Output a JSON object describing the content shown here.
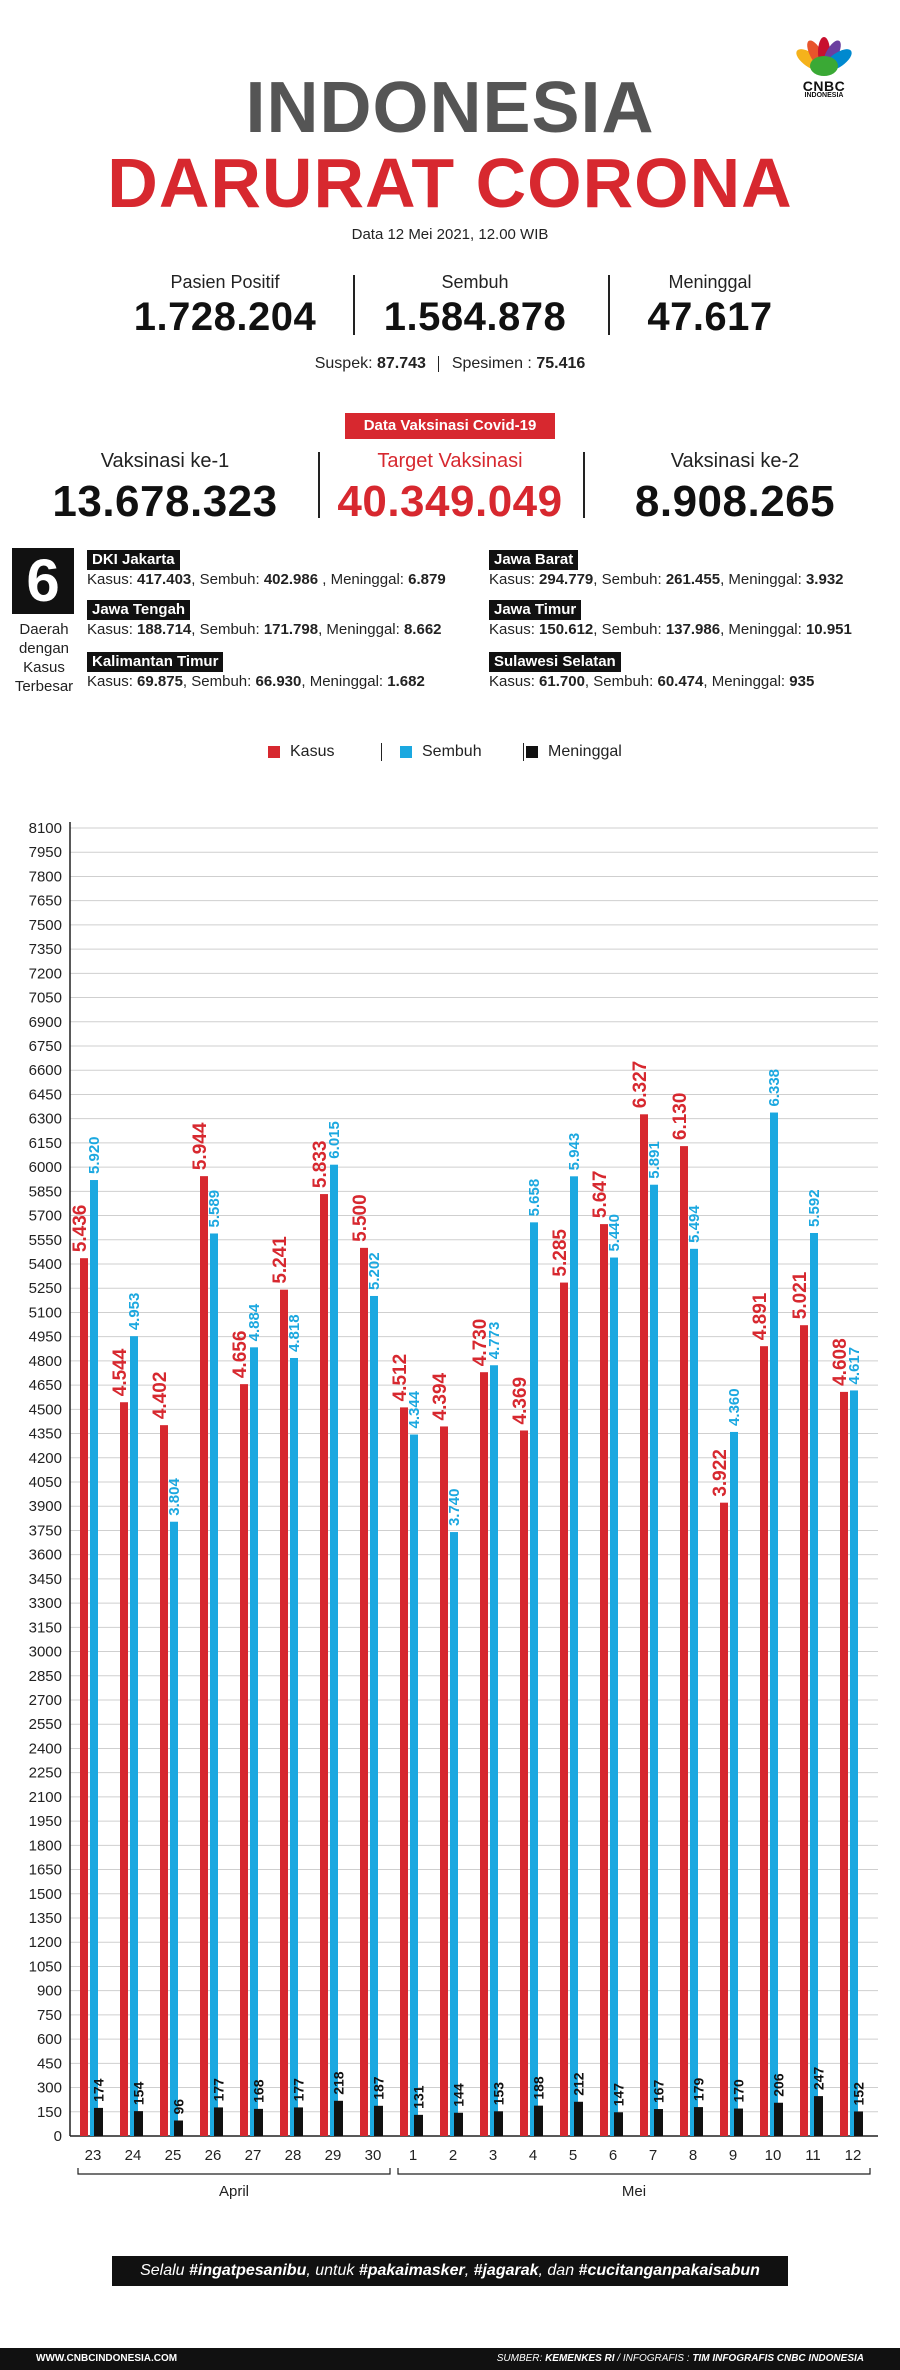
{
  "logo": {
    "text": "CNBC",
    "sub": "INDONESIA"
  },
  "title": {
    "line1": "INDONESIA",
    "line2": "DARURAT CORONA"
  },
  "date": "Data 12 Mei 2021, 12.00 WIB",
  "stats": [
    {
      "label": "Pasien Positif",
      "value": "1.728.204"
    },
    {
      "label": "Sembuh",
      "value": "1.584.878"
    },
    {
      "label": "Meninggal",
      "value": "47.617"
    }
  ],
  "suspek": {
    "label": "Suspek:",
    "value": "87.743"
  },
  "spesimen": {
    "label": "Spesimen :",
    "value": "75.416"
  },
  "vaksin_badge": "Data Vaksinasi Covid-19",
  "vaksin": [
    {
      "label": "Vaksinasi ke-1",
      "value": "13.678.323"
    },
    {
      "label": "Target Vaksinasi",
      "value": "40.349.049"
    },
    {
      "label": "Vaksinasi ke-2",
      "value": "8.908.265"
    }
  ],
  "regions_count": "6",
  "regions_caption": [
    "Daerah",
    "dengan",
    "Kasus",
    "Terbesar"
  ],
  "regions": [
    {
      "name": "DKI Jakarta",
      "kasus": "417.403",
      "sembuh": "402.986",
      "sep": " , ",
      "meninggal": "6.879"
    },
    {
      "name": "Jawa Barat",
      "kasus": "294.779",
      "sembuh": "261.455",
      "sep": ", ",
      "meninggal": "3.932"
    },
    {
      "name": "Jawa Tengah",
      "kasus": "188.714",
      "sembuh": "171.798",
      "sep": ", ",
      "meninggal": "8.662"
    },
    {
      "name": "Jawa Timur",
      "kasus": "150.612",
      "sembuh": "137.986",
      "sep": ", ",
      "meninggal": "10.951"
    },
    {
      "name": "Kalimantan Timur",
      "kasus": "69.875",
      "sembuh": "66.930",
      "sep": ", ",
      "meninggal": "1.682"
    },
    {
      "name": "Sulawesi Selatan",
      "kasus": "61.700",
      "sembuh": "60.474",
      "sep": ", ",
      "meninggal": "935"
    }
  ],
  "region_labels": {
    "kasus": "Kasus: ",
    "sembuh": "Sembuh: ",
    "meninggal": "Meninggal: "
  },
  "colors": {
    "kasus": "#d7282f",
    "sembuh": "#1ba8e0",
    "meninggal": "#111111"
  },
  "chart_data": {
    "type": "bar",
    "categories": [
      "23",
      "24",
      "25",
      "26",
      "27",
      "28",
      "29",
      "30",
      "1",
      "2",
      "3",
      "4",
      "5",
      "6",
      "7",
      "8",
      "9",
      "10",
      "11",
      "12"
    ],
    "groups": [
      {
        "label": "April",
        "from": 0,
        "to": 7
      },
      {
        "label": "Mei",
        "from": 8,
        "to": 19
      }
    ],
    "series": [
      {
        "name": "Kasus",
        "values": [
          5436,
          4544,
          4402,
          5944,
          4656,
          5241,
          5833,
          5500,
          4512,
          4394,
          4730,
          4369,
          5285,
          5647,
          6327,
          6130,
          3922,
          4891,
          5021,
          4608
        ],
        "labels": [
          "5.436",
          "4.544",
          "4.402",
          "5.944",
          "4.656",
          "5.241",
          "5.833",
          "5.500",
          "4.512",
          "4.394",
          "4.730",
          "4.369",
          "5.285",
          "5.647",
          "6.327",
          "6.130",
          "3.922",
          "4.891",
          "5.021",
          "4.608"
        ]
      },
      {
        "name": "Sembuh",
        "values": [
          5920,
          4953,
          3804,
          5589,
          4884,
          4818,
          6015,
          5202,
          4344,
          3740,
          4773,
          5658,
          5943,
          5440,
          5891,
          5494,
          4360,
          6338,
          5592,
          4617
        ],
        "labels": [
          "5.920",
          "4.953",
          "3.804",
          "5.589",
          "4.884",
          "4.818",
          "6.015",
          "5.202",
          "4.344",
          "3.740",
          "4.773",
          "5.658",
          "5.943",
          "5.440",
          "5.891",
          "5.494",
          "4.360",
          "6.338",
          "5.592",
          "4.617"
        ]
      },
      {
        "name": "Meninggal",
        "values": [
          174,
          154,
          96,
          177,
          168,
          177,
          218,
          187,
          131,
          144,
          153,
          188,
          212,
          147,
          167,
          179,
          170,
          206,
          247,
          152
        ],
        "labels": [
          "174",
          "154",
          "96",
          "177",
          "168",
          "177",
          "218",
          "187",
          "131",
          "144",
          "153",
          "188",
          "212",
          "147",
          "167",
          "179",
          "170",
          "206",
          "247",
          "152"
        ]
      }
    ],
    "yticks": [
      0,
      150,
      300,
      450,
      600,
      750,
      900,
      1050,
      1200,
      1350,
      1500,
      1650,
      1800,
      1950,
      2100,
      2250,
      2400,
      2550,
      2700,
      2850,
      3000,
      3150,
      3300,
      3450,
      3600,
      3750,
      3900,
      4050,
      4200,
      4350,
      4500,
      4650,
      4800,
      4950,
      5100,
      5250,
      5400,
      5550,
      5700,
      5850,
      6000,
      6150,
      6300,
      6450,
      6600,
      6750,
      6900,
      7050,
      7200,
      7350,
      7500,
      7650,
      7800,
      7950,
      8100
    ],
    "ylim": [
      0,
      8100
    ],
    "grid": true,
    "legend": "top-center"
  },
  "slogan": {
    "p1": "Selalu ",
    "b1": "#ingatpesanibu",
    "p2": ", untuk ",
    "b2": "#pakaimasker",
    "p3": ", ",
    "b3": "#jagarak",
    "p4": ", dan ",
    "b4": "#cucitanganpakaisabun"
  },
  "footer": {
    "left": "WWW.CNBCINDONESIA.COM",
    "right_label": "SUMBER: ",
    "right_src": "KEMENKES RI",
    "right_mid": " / INFOGRAFIS : ",
    "right_team": "TIM INFOGRAFIS CNBC INDONESIA"
  }
}
